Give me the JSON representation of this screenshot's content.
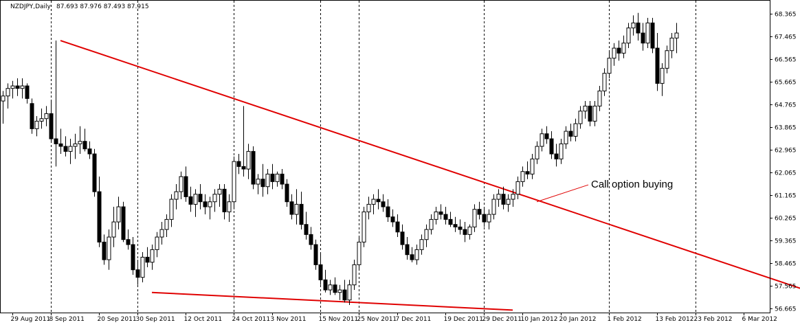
{
  "header": {
    "symbol": "NZDJPY,Daily",
    "ohlc": "87.693 87.976 87.493 87.915"
  },
  "colors": {
    "background": "#ffffff",
    "candle_stroke": "#000000",
    "bull_fill": "#ffffff",
    "bear_fill": "#000000",
    "grid": "#000000",
    "trendline": "#e00000",
    "annotation": "#e00000"
  },
  "chart_data": {
    "type": "candlestick",
    "title": "NZDJPY,Daily",
    "ylim": [
      56.665,
      68.5
    ],
    "y_ticks": [
      "68.365",
      "67.465",
      "66.565",
      "65.665",
      "64.765",
      "63.865",
      "62.965",
      "62.065",
      "61.165",
      "60.265",
      "59.365",
      "58.465",
      "57.565",
      "56.665"
    ],
    "x_ticks": [
      {
        "label": "29 Aug 2011",
        "index": 2
      },
      {
        "label": "8 Sep 2011",
        "index": 10
      },
      {
        "label": "20 Sep 2011",
        "index": 20
      },
      {
        "label": "30 Sep 2011",
        "index": 28
      },
      {
        "label": "12 Oct 2011",
        "index": 38
      },
      {
        "label": "24 Oct 2011",
        "index": 48
      },
      {
        "label": "3 Nov 2011",
        "index": 56
      },
      {
        "label": "15 Nov 2011",
        "index": 66
      },
      {
        "label": "25 Nov 2011",
        "index": 74
      },
      {
        "label": "7 Dec 2011",
        "index": 82
      },
      {
        "label": "19 Dec 2011",
        "index": 92
      },
      {
        "label": "29 Dec 2011",
        "index": 100
      },
      {
        "label": "10 Jan 2012",
        "index": 108
      },
      {
        "label": "20 Jan 2012",
        "index": 116
      },
      {
        "label": "1 Feb 2012",
        "index": 126
      },
      {
        "label": "13 Feb 2012",
        "index": 136
      },
      {
        "label": "23 Feb 2012",
        "index": 144
      },
      {
        "label": "6 Mar 2012",
        "index": 154
      }
    ],
    "vertical_grid_indices": [
      10,
      28,
      48,
      66,
      74,
      100,
      126,
      144
    ],
    "candles": [
      {
        "o": 64.9,
        "h": 65.3,
        "l": 64.0,
        "c": 65.1
      },
      {
        "o": 65.1,
        "h": 65.6,
        "l": 64.6,
        "c": 65.4
      },
      {
        "o": 65.4,
        "h": 65.7,
        "l": 65.0,
        "c": 65.5
      },
      {
        "o": 65.5,
        "h": 65.8,
        "l": 65.1,
        "c": 65.4
      },
      {
        "o": 65.4,
        "h": 65.8,
        "l": 65.0,
        "c": 65.5
      },
      {
        "o": 65.5,
        "h": 65.6,
        "l": 64.8,
        "c": 65.0
      },
      {
        "o": 64.8,
        "h": 65.0,
        "l": 63.6,
        "c": 63.8
      },
      {
        "o": 63.8,
        "h": 64.3,
        "l": 63.5,
        "c": 64.1
      },
      {
        "o": 64.1,
        "h": 64.6,
        "l": 63.8,
        "c": 64.2
      },
      {
        "o": 64.2,
        "h": 64.7,
        "l": 63.9,
        "c": 64.4
      },
      {
        "o": 64.4,
        "h": 64.9,
        "l": 63.3,
        "c": 63.4
      },
      {
        "o": 63.4,
        "h": 67.3,
        "l": 62.3,
        "c": 63.2
      },
      {
        "o": 63.2,
        "h": 63.8,
        "l": 62.8,
        "c": 63.1
      },
      {
        "o": 63.1,
        "h": 63.5,
        "l": 62.7,
        "c": 62.9
      },
      {
        "o": 62.9,
        "h": 63.4,
        "l": 62.4,
        "c": 63.1
      },
      {
        "o": 63.1,
        "h": 63.6,
        "l": 62.6,
        "c": 63.2
      },
      {
        "o": 63.2,
        "h": 63.9,
        "l": 62.8,
        "c": 63.3
      },
      {
        "o": 63.3,
        "h": 63.8,
        "l": 62.9,
        "c": 63.0
      },
      {
        "o": 63.0,
        "h": 63.3,
        "l": 62.6,
        "c": 62.8
      },
      {
        "o": 62.8,
        "h": 63.0,
        "l": 61.1,
        "c": 61.3
      },
      {
        "o": 61.3,
        "h": 61.9,
        "l": 59.1,
        "c": 59.3
      },
      {
        "o": 59.3,
        "h": 59.6,
        "l": 58.4,
        "c": 58.6
      },
      {
        "o": 58.6,
        "h": 59.8,
        "l": 58.2,
        "c": 59.5
      },
      {
        "o": 59.5,
        "h": 60.7,
        "l": 59.1,
        "c": 60.1
      },
      {
        "o": 60.1,
        "h": 61.1,
        "l": 59.8,
        "c": 60.7
      },
      {
        "o": 60.7,
        "h": 60.9,
        "l": 59.3,
        "c": 59.4
      },
      {
        "o": 59.4,
        "h": 59.8,
        "l": 59.0,
        "c": 59.2
      },
      {
        "o": 59.2,
        "h": 59.5,
        "l": 58.0,
        "c": 58.2
      },
      {
        "o": 58.2,
        "h": 58.6,
        "l": 57.6,
        "c": 57.9
      },
      {
        "o": 57.9,
        "h": 58.9,
        "l": 57.7,
        "c": 58.7
      },
      {
        "o": 58.7,
        "h": 59.1,
        "l": 58.3,
        "c": 58.5
      },
      {
        "o": 58.5,
        "h": 59.2,
        "l": 58.2,
        "c": 59.0
      },
      {
        "o": 59.0,
        "h": 59.7,
        "l": 58.7,
        "c": 59.5
      },
      {
        "o": 59.5,
        "h": 60.1,
        "l": 59.2,
        "c": 59.8
      },
      {
        "o": 59.8,
        "h": 60.4,
        "l": 59.5,
        "c": 60.2
      },
      {
        "o": 60.2,
        "h": 61.2,
        "l": 59.9,
        "c": 61.0
      },
      {
        "o": 61.0,
        "h": 61.6,
        "l": 60.6,
        "c": 61.3
      },
      {
        "o": 61.3,
        "h": 62.1,
        "l": 61.0,
        "c": 61.9
      },
      {
        "o": 61.9,
        "h": 62.3,
        "l": 60.9,
        "c": 61.1
      },
      {
        "o": 61.1,
        "h": 61.5,
        "l": 60.5,
        "c": 60.8
      },
      {
        "o": 60.8,
        "h": 61.4,
        "l": 60.3,
        "c": 61.2
      },
      {
        "o": 61.2,
        "h": 61.6,
        "l": 60.6,
        "c": 60.9
      },
      {
        "o": 60.9,
        "h": 61.2,
        "l": 60.4,
        "c": 60.7
      },
      {
        "o": 60.7,
        "h": 61.1,
        "l": 60.2,
        "c": 60.9
      },
      {
        "o": 60.9,
        "h": 61.4,
        "l": 60.5,
        "c": 61.2
      },
      {
        "o": 61.2,
        "h": 61.6,
        "l": 60.7,
        "c": 61.4
      },
      {
        "o": 61.4,
        "h": 61.6,
        "l": 60.2,
        "c": 60.5
      },
      {
        "o": 60.5,
        "h": 61.2,
        "l": 60.1,
        "c": 60.9
      },
      {
        "o": 60.9,
        "h": 62.7,
        "l": 60.6,
        "c": 62.5
      },
      {
        "o": 62.5,
        "h": 62.8,
        "l": 62.0,
        "c": 62.3
      },
      {
        "o": 62.3,
        "h": 64.7,
        "l": 61.9,
        "c": 62.2
      },
      {
        "o": 62.2,
        "h": 63.2,
        "l": 61.8,
        "c": 62.9
      },
      {
        "o": 62.9,
        "h": 63.1,
        "l": 61.4,
        "c": 61.6
      },
      {
        "o": 61.6,
        "h": 62.0,
        "l": 61.2,
        "c": 61.8
      },
      {
        "o": 61.8,
        "h": 62.4,
        "l": 61.1,
        "c": 61.5
      },
      {
        "o": 61.5,
        "h": 62.2,
        "l": 61.2,
        "c": 62.0
      },
      {
        "o": 62.0,
        "h": 62.4,
        "l": 61.4,
        "c": 61.7
      },
      {
        "o": 61.7,
        "h": 62.1,
        "l": 61.5,
        "c": 62.0
      },
      {
        "o": 62.0,
        "h": 62.2,
        "l": 61.4,
        "c": 61.6
      },
      {
        "o": 61.6,
        "h": 61.8,
        "l": 60.7,
        "c": 60.9
      },
      {
        "o": 60.9,
        "h": 61.2,
        "l": 60.2,
        "c": 60.4
      },
      {
        "o": 60.4,
        "h": 61.4,
        "l": 60.0,
        "c": 60.8
      },
      {
        "o": 60.8,
        "h": 61.3,
        "l": 59.8,
        "c": 60.0
      },
      {
        "o": 60.0,
        "h": 60.5,
        "l": 59.4,
        "c": 59.6
      },
      {
        "o": 59.6,
        "h": 59.9,
        "l": 59.0,
        "c": 59.2
      },
      {
        "o": 59.2,
        "h": 59.4,
        "l": 58.2,
        "c": 58.4
      },
      {
        "o": 58.4,
        "h": 58.9,
        "l": 57.6,
        "c": 57.8
      },
      {
        "o": 57.8,
        "h": 58.2,
        "l": 57.3,
        "c": 57.4
      },
      {
        "o": 57.4,
        "h": 57.8,
        "l": 57.2,
        "c": 57.6
      },
      {
        "o": 57.6,
        "h": 57.9,
        "l": 57.2,
        "c": 57.3
      },
      {
        "o": 57.3,
        "h": 57.6,
        "l": 57.0,
        "c": 57.4
      },
      {
        "o": 57.4,
        "h": 57.8,
        "l": 56.9,
        "c": 57.0
      },
      {
        "o": 57.0,
        "h": 57.8,
        "l": 56.8,
        "c": 57.6
      },
      {
        "o": 57.6,
        "h": 58.6,
        "l": 57.4,
        "c": 58.4
      },
      {
        "o": 58.4,
        "h": 59.5,
        "l": 58.2,
        "c": 59.3
      },
      {
        "o": 59.3,
        "h": 60.7,
        "l": 59.1,
        "c": 60.5
      },
      {
        "o": 60.5,
        "h": 61.1,
        "l": 60.2,
        "c": 60.8
      },
      {
        "o": 60.8,
        "h": 61.2,
        "l": 60.4,
        "c": 61.0
      },
      {
        "o": 61.0,
        "h": 61.4,
        "l": 60.6,
        "c": 60.9
      },
      {
        "o": 60.9,
        "h": 61.2,
        "l": 60.5,
        "c": 60.7
      },
      {
        "o": 60.7,
        "h": 61.0,
        "l": 60.1,
        "c": 60.3
      },
      {
        "o": 60.3,
        "h": 60.6,
        "l": 59.9,
        "c": 60.1
      },
      {
        "o": 60.1,
        "h": 60.4,
        "l": 59.5,
        "c": 59.7
      },
      {
        "o": 59.7,
        "h": 60.0,
        "l": 59.0,
        "c": 59.2
      },
      {
        "o": 59.2,
        "h": 59.5,
        "l": 58.6,
        "c": 58.8
      },
      {
        "o": 58.8,
        "h": 59.1,
        "l": 58.5,
        "c": 58.6
      },
      {
        "o": 58.6,
        "h": 59.2,
        "l": 58.4,
        "c": 59.0
      },
      {
        "o": 59.0,
        "h": 59.6,
        "l": 58.8,
        "c": 59.4
      },
      {
        "o": 59.4,
        "h": 60.0,
        "l": 59.1,
        "c": 59.8
      },
      {
        "o": 59.8,
        "h": 60.4,
        "l": 59.6,
        "c": 60.2
      },
      {
        "o": 60.2,
        "h": 60.7,
        "l": 60.0,
        "c": 60.5
      },
      {
        "o": 60.5,
        "h": 60.8,
        "l": 60.2,
        "c": 60.4
      },
      {
        "o": 60.4,
        "h": 60.7,
        "l": 60.0,
        "c": 60.2
      },
      {
        "o": 60.2,
        "h": 60.5,
        "l": 59.9,
        "c": 60.0
      },
      {
        "o": 60.0,
        "h": 60.3,
        "l": 59.7,
        "c": 59.9
      },
      {
        "o": 59.9,
        "h": 60.2,
        "l": 59.6,
        "c": 59.8
      },
      {
        "o": 59.8,
        "h": 60.1,
        "l": 59.3,
        "c": 59.6
      },
      {
        "o": 59.6,
        "h": 60.0,
        "l": 59.4,
        "c": 59.9
      },
      {
        "o": 59.9,
        "h": 60.8,
        "l": 59.7,
        "c": 60.6
      },
      {
        "o": 60.6,
        "h": 60.9,
        "l": 60.2,
        "c": 60.4
      },
      {
        "o": 60.4,
        "h": 60.7,
        "l": 59.9,
        "c": 60.1
      },
      {
        "o": 60.1,
        "h": 60.6,
        "l": 59.8,
        "c": 60.4
      },
      {
        "o": 60.4,
        "h": 61.2,
        "l": 60.2,
        "c": 61.0
      },
      {
        "o": 61.0,
        "h": 61.4,
        "l": 60.7,
        "c": 61.2
      },
      {
        "o": 61.2,
        "h": 61.5,
        "l": 60.6,
        "c": 60.8
      },
      {
        "o": 60.8,
        "h": 61.2,
        "l": 60.5,
        "c": 61.0
      },
      {
        "o": 61.0,
        "h": 61.4,
        "l": 60.7,
        "c": 61.2
      },
      {
        "o": 61.2,
        "h": 61.9,
        "l": 61.0,
        "c": 61.7
      },
      {
        "o": 61.7,
        "h": 62.3,
        "l": 61.5,
        "c": 62.1
      },
      {
        "o": 62.1,
        "h": 62.5,
        "l": 61.8,
        "c": 62.0
      },
      {
        "o": 62.0,
        "h": 62.8,
        "l": 61.8,
        "c": 62.6
      },
      {
        "o": 62.6,
        "h": 63.3,
        "l": 62.4,
        "c": 63.1
      },
      {
        "o": 63.1,
        "h": 63.8,
        "l": 62.9,
        "c": 63.6
      },
      {
        "o": 63.6,
        "h": 63.9,
        "l": 63.2,
        "c": 63.4
      },
      {
        "o": 63.4,
        "h": 63.7,
        "l": 62.6,
        "c": 62.8
      },
      {
        "o": 62.8,
        "h": 63.2,
        "l": 62.3,
        "c": 62.6
      },
      {
        "o": 62.6,
        "h": 63.4,
        "l": 62.4,
        "c": 63.2
      },
      {
        "o": 63.2,
        "h": 63.9,
        "l": 63.0,
        "c": 63.7
      },
      {
        "o": 63.7,
        "h": 64.0,
        "l": 63.3,
        "c": 63.5
      },
      {
        "o": 63.5,
        "h": 64.2,
        "l": 63.3,
        "c": 64.0
      },
      {
        "o": 64.0,
        "h": 64.7,
        "l": 63.8,
        "c": 64.5
      },
      {
        "o": 64.5,
        "h": 64.9,
        "l": 64.2,
        "c": 64.7
      },
      {
        "o": 64.7,
        "h": 64.9,
        "l": 63.9,
        "c": 64.1
      },
      {
        "o": 64.1,
        "h": 64.9,
        "l": 63.9,
        "c": 64.7
      },
      {
        "o": 64.7,
        "h": 65.5,
        "l": 64.5,
        "c": 65.3
      },
      {
        "o": 65.3,
        "h": 66.2,
        "l": 65.1,
        "c": 66.0
      },
      {
        "o": 66.0,
        "h": 66.9,
        "l": 65.8,
        "c": 66.6
      },
      {
        "o": 66.6,
        "h": 67.2,
        "l": 66.3,
        "c": 67.0
      },
      {
        "o": 67.0,
        "h": 67.3,
        "l": 66.5,
        "c": 66.8
      },
      {
        "o": 66.8,
        "h": 67.5,
        "l": 66.6,
        "c": 67.2
      },
      {
        "o": 67.2,
        "h": 68.0,
        "l": 67.0,
        "c": 67.8
      },
      {
        "o": 67.8,
        "h": 68.3,
        "l": 67.5,
        "c": 68.0
      },
      {
        "o": 68.0,
        "h": 68.4,
        "l": 67.3,
        "c": 67.6
      },
      {
        "o": 67.6,
        "h": 68.0,
        "l": 66.9,
        "c": 67.2
      },
      {
        "o": 67.2,
        "h": 68.2,
        "l": 67.0,
        "c": 68.0
      },
      {
        "o": 68.0,
        "h": 68.2,
        "l": 66.8,
        "c": 67.0
      },
      {
        "o": 67.0,
        "h": 67.6,
        "l": 65.3,
        "c": 65.6
      },
      {
        "o": 65.6,
        "h": 66.4,
        "l": 65.1,
        "c": 66.2
      },
      {
        "o": 66.2,
        "h": 67.1,
        "l": 66.0,
        "c": 66.9
      },
      {
        "o": 66.9,
        "h": 67.6,
        "l": 66.6,
        "c": 67.4
      },
      {
        "o": 67.4,
        "h": 68.0,
        "l": 66.8,
        "c": 67.6
      }
    ],
    "trendlines": [
      {
        "x1": 12,
        "y1": 67.3,
        "x2": 166,
        "y2": 57.45
      },
      {
        "x1": 31,
        "y1": 57.3,
        "x2": 106,
        "y2": 56.6
      }
    ],
    "annotations": [
      {
        "text": "Call option buying",
        "index": 114,
        "value": 61.6,
        "arrow_to_index": 111,
        "arrow_to_value": 60.9
      }
    ]
  }
}
